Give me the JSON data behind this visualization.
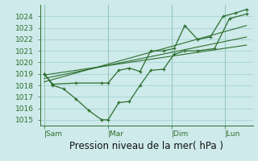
{
  "bg_color": "#ceeaea",
  "grid_color": "#9ecfcf",
  "line_color": "#2d6e2d",
  "xlabel": "Pression niveau de la mer( hPa )",
  "ylim": [
    1014.5,
    1025.0
  ],
  "yticks": [
    1015,
    1016,
    1017,
    1018,
    1019,
    1020,
    1021,
    1022,
    1023,
    1024
  ],
  "xtick_labels": [
    "|Sam",
    "|Mar",
    "|Dim",
    "|Lun"
  ],
  "xtick_positions": [
    0.0,
    3.0,
    6.0,
    8.5
  ],
  "xlim": [
    -0.2,
    9.8
  ],
  "main_line_x": [
    0.0,
    0.4,
    0.9,
    1.5,
    2.1,
    2.7,
    3.0,
    3.5,
    4.0,
    4.5,
    5.0,
    5.6,
    6.1,
    6.6,
    7.2,
    8.0,
    8.7,
    9.5
  ],
  "main_line_y": [
    1019.0,
    1018.0,
    1017.7,
    1016.8,
    1015.8,
    1015.0,
    1015.0,
    1016.5,
    1016.6,
    1018.0,
    1019.3,
    1019.4,
    1020.7,
    1021.0,
    1021.0,
    1021.2,
    1023.8,
    1024.2
  ],
  "trend_line1_x": [
    0.0,
    9.5
  ],
  "trend_line1_y": [
    1018.9,
    1021.5
  ],
  "trend_line2_x": [
    0.0,
    9.5
  ],
  "trend_line2_y": [
    1018.6,
    1022.2
  ],
  "trend_line3_x": [
    0.0,
    9.5
  ],
  "trend_line3_y": [
    1018.3,
    1023.2
  ],
  "extra_line_x": [
    0.0,
    0.4,
    1.5,
    2.7,
    3.0,
    3.5,
    4.0,
    4.5,
    5.0,
    5.6,
    6.1,
    6.6,
    7.2,
    7.8,
    8.4,
    9.0,
    9.5
  ],
  "extra_line_y": [
    1019.0,
    1018.1,
    1018.2,
    1018.2,
    1018.2,
    1019.3,
    1019.5,
    1019.2,
    1021.0,
    1021.0,
    1021.2,
    1023.2,
    1022.0,
    1022.2,
    1024.0,
    1024.3,
    1024.6
  ],
  "vline_positions": [
    0.0,
    3.0,
    6.0,
    8.5
  ],
  "tick_label_fontsize": 6.5,
  "xlabel_fontsize": 8.5
}
